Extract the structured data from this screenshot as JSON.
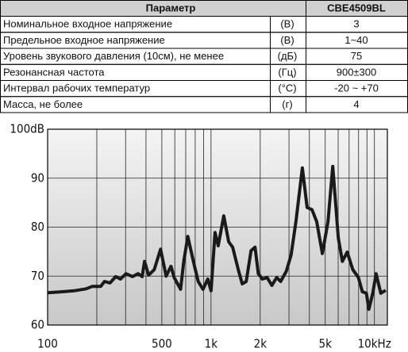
{
  "table": {
    "header": [
      "Параметр",
      "CBE4509BL"
    ],
    "rows": [
      [
        "Номинальное входное напряжение",
        "(В)",
        "3"
      ],
      [
        "Предельное входное напряжение",
        "(В)",
        "1~40"
      ],
      [
        "Уровень звукового давления (10см), не менее",
        "(дБ)",
        "75"
      ],
      [
        "Резонансная частота",
        "(Гц)",
        "900±300"
      ],
      [
        "Интервал рабочих температур",
        "(°С)",
        "-20 ~ +70"
      ],
      [
        "Масса, не более",
        "(г)",
        "4"
      ]
    ]
  },
  "chart_data": {
    "type": "line",
    "xscale": "log",
    "x": [
      100,
      123,
      145,
      172,
      188,
      211,
      223,
      241,
      261,
      279,
      302,
      331,
      358,
      379,
      392,
      415,
      449,
      491,
      531,
      569,
      595,
      651,
      681,
      721,
      780,
      835,
      893,
      956,
      1000,
      1058,
      1107,
      1197,
      1282,
      1357,
      1468,
      1553,
      1643,
      1758,
      1860,
      1946,
      2060,
      2203,
      2358,
      2522,
      2669,
      2889,
      3090,
      3308,
      3620,
      3873,
      4146,
      4434,
      4799,
      5196,
      5559,
      6014,
      6364,
      6811,
      7374,
      7980,
      8437,
      8928,
      9242,
      9772,
      10232,
      10940,
      11716
    ],
    "series": [
      {
        "color": "#1a1a1a",
        "values": [
          66.6,
          66.8,
          67.0,
          67.4,
          67.9,
          67.9,
          68.9,
          68.6,
          69.9,
          69.4,
          70.5,
          69.9,
          70.5,
          69.9,
          73.0,
          70.2,
          71.3,
          75.5,
          70.0,
          72.0,
          69.7,
          67.3,
          73.0,
          78.1,
          73.0,
          68.9,
          67.3,
          69.4,
          67.0,
          78.9,
          76.2,
          82.3,
          77.0,
          75.9,
          71.3,
          68.4,
          68.9,
          75.2,
          75.9,
          70.5,
          69.4,
          69.7,
          68.1,
          69.7,
          68.9,
          71.0,
          74.3,
          81.1,
          92.1,
          84.0,
          83.6,
          81.1,
          74.6,
          81.1,
          92.4,
          77.8,
          73.0,
          74.9,
          71.3,
          69.7,
          66.8,
          66.5,
          63.2,
          66.5,
          70.5,
          66.5,
          67.1
        ]
      }
    ],
    "xlim": [
      100,
      12000
    ],
    "xticks": [
      100,
      500,
      {
        "value": 1000,
        "label": "1k"
      },
      {
        "value": 2000,
        "label": "2k"
      },
      {
        "value": 5000,
        "label": "5k"
      },
      {
        "value": 10000,
        "label": "10kHz"
      }
    ],
    "xminor_grid": [
      200,
      300,
      400,
      600,
      700,
      800,
      900,
      3000,
      4000,
      6000,
      7000,
      8000,
      9000
    ],
    "ylim": [
      60,
      100
    ],
    "yticks": [
      60,
      70,
      80,
      90,
      {
        "value": 100,
        "label": "100dB"
      }
    ],
    "grid": true
  }
}
